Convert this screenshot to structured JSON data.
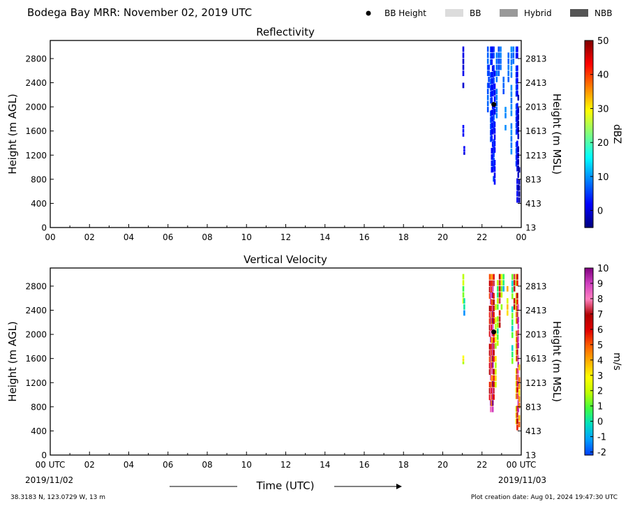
{
  "header": {
    "title": "Bodega Bay MRR:  November 02, 2019 UTC",
    "legend": [
      {
        "label": "BB Height",
        "kind": "dot",
        "color": "#000000"
      },
      {
        "label": "BB",
        "kind": "box",
        "color": "#dcdcdc"
      },
      {
        "label": "Hybrid",
        "kind": "box",
        "color": "#999999"
      },
      {
        "label": "NBB",
        "kind": "box",
        "color": "#555555"
      }
    ]
  },
  "footer": {
    "location": "38.3183 N, 123.0729 W, 13 m",
    "creation": "Plot creation date: Aug 01, 2024 19:47:30 UTC",
    "date_start": "2019/11/02",
    "date_end": "2019/11/03",
    "xlabel": "Time (UTC)"
  },
  "chart_data": [
    {
      "type": "heatmap",
      "title": "Reflectivity",
      "ylabel": "Height (m AGL)",
      "y2label": "Height (m MSL)",
      "xlim": [
        0,
        24
      ],
      "ylim": [
        0,
        3100
      ],
      "x_ticks": [
        "00",
        "02",
        "04",
        "06",
        "08",
        "10",
        "12",
        "14",
        "16",
        "18",
        "20",
        "22",
        "00"
      ],
      "y_ticks": [
        0,
        400,
        800,
        1200,
        1600,
        2000,
        2400,
        2800
      ],
      "y2_ticks": [
        "13",
        "413",
        "813",
        "1213",
        "1613",
        "2013",
        "2413",
        "2813"
      ],
      "colorbar": {
        "label": "dBZ",
        "min": -5,
        "max": 50,
        "ticks": [
          "0",
          "10",
          "20",
          "30",
          "40",
          "50"
        ],
        "tick_values": [
          0,
          10,
          20,
          30,
          40,
          50
        ],
        "stops": [
          "#00007f",
          "#0000ff",
          "#007fff",
          "#00ffff",
          "#7fff7f",
          "#ffff00",
          "#ff7f00",
          "#ff0000",
          "#7f0000"
        ]
      },
      "bb_height": {
        "x": 22.6,
        "y": 2040
      },
      "echo_columns": [
        {
          "x": 21.05,
          "y0": 2300,
          "y1": 3000,
          "v": 0
        },
        {
          "x": 21.05,
          "y0": 1500,
          "y1": 1700,
          "v": 2
        },
        {
          "x": 21.1,
          "y0": 1200,
          "y1": 1350,
          "v": 1
        },
        {
          "x": 22.3,
          "y0": 1800,
          "y1": 3000,
          "v": 7
        },
        {
          "x": 22.35,
          "y0": 2200,
          "y1": 2700,
          "v": 5
        },
        {
          "x": 22.45,
          "y0": 1300,
          "y1": 3000,
          "v": 6
        },
        {
          "x": 22.5,
          "y0": 900,
          "y1": 3000,
          "v": 3
        },
        {
          "x": 22.55,
          "y0": 800,
          "y1": 3000,
          "v": 2
        },
        {
          "x": 22.6,
          "y0": 750,
          "y1": 3000,
          "v": 5
        },
        {
          "x": 22.65,
          "y0": 700,
          "y1": 2600,
          "v": 2
        },
        {
          "x": 22.75,
          "y0": 1800,
          "y1": 3000,
          "v": 8
        },
        {
          "x": 22.85,
          "y0": 2400,
          "y1": 3000,
          "v": 6
        },
        {
          "x": 22.95,
          "y0": 2500,
          "y1": 3000,
          "v": 8
        },
        {
          "x": 23.1,
          "y0": 2200,
          "y1": 2500,
          "v": 7
        },
        {
          "x": 23.2,
          "y0": 1600,
          "y1": 2000,
          "v": 9
        },
        {
          "x": 23.35,
          "y0": 2400,
          "y1": 3000,
          "v": 8
        },
        {
          "x": 23.5,
          "y0": 1200,
          "y1": 3000,
          "v": 9
        },
        {
          "x": 23.6,
          "y0": 2700,
          "y1": 3000,
          "v": 8
        },
        {
          "x": 23.75,
          "y0": 1000,
          "y1": 3000,
          "v": 6
        },
        {
          "x": 23.8,
          "y0": 400,
          "y1": 3000,
          "v": 2
        },
        {
          "x": 23.85,
          "y0": 600,
          "y1": 2200,
          "v": -2
        },
        {
          "x": 23.9,
          "y0": 400,
          "y1": 1000,
          "v": -3
        }
      ]
    },
    {
      "type": "heatmap",
      "title": "Vertical Velocity",
      "ylabel": "Height (m AGL)",
      "y2label": "Height (m MSL)",
      "xlim": [
        0,
        24
      ],
      "ylim": [
        0,
        3100
      ],
      "x_ticks": [
        "00 UTC",
        "02",
        "04",
        "06",
        "08",
        "10",
        "12",
        "14",
        "16",
        "18",
        "20",
        "22",
        "00 UTC"
      ],
      "y_ticks": [
        0,
        400,
        800,
        1200,
        1600,
        2000,
        2400,
        2800
      ],
      "y2_ticks": [
        "13",
        "413",
        "813",
        "1213",
        "1613",
        "2013",
        "2413",
        "2813"
      ],
      "colorbar": {
        "label": "m/s",
        "min": -2.2,
        "max": 10,
        "ticks": [
          "-2",
          "-1",
          "0",
          "1",
          "2",
          "3",
          "4",
          "5",
          "6",
          "7",
          "8",
          "9",
          "10"
        ],
        "tick_values": [
          -2,
          -1,
          0,
          1,
          2,
          3,
          4,
          5,
          6,
          7,
          8,
          9,
          10
        ],
        "stops": [
          "#0040ff",
          "#00a0ff",
          "#00e0c0",
          "#40ff40",
          "#c0ff00",
          "#ffff00",
          "#ffb000",
          "#ff6000",
          "#e00000",
          "#b00000",
          "#ff80c0",
          "#d040c0",
          "#800080"
        ]
      },
      "bb_height": {
        "x": 22.6,
        "y": 2040
      },
      "echo_columns": [
        {
          "x": 21.05,
          "y0": 2500,
          "y1": 3000,
          "v": 1.5
        },
        {
          "x": 21.1,
          "y0": 2300,
          "y1": 2600,
          "v": -0.5
        },
        {
          "x": 21.05,
          "y0": 1500,
          "y1": 1650,
          "v": 2.5
        },
        {
          "x": 22.4,
          "y0": 900,
          "y1": 3000,
          "v": 6
        },
        {
          "x": 22.45,
          "y0": 700,
          "y1": 2800,
          "v": 8.5
        },
        {
          "x": 22.5,
          "y0": 800,
          "y1": 3000,
          "v": 5
        },
        {
          "x": 22.55,
          "y0": 700,
          "y1": 2800,
          "v": 9.5
        },
        {
          "x": 22.6,
          "y0": 800,
          "y1": 3000,
          "v": 6.5
        },
        {
          "x": 22.7,
          "y0": 1000,
          "y1": 2500,
          "v": 2.5
        },
        {
          "x": 22.8,
          "y0": 1800,
          "y1": 3000,
          "v": 1
        },
        {
          "x": 22.9,
          "y0": 2100,
          "y1": 3000,
          "v": 6.5
        },
        {
          "x": 23.0,
          "y0": 2400,
          "y1": 3000,
          "v": 2
        },
        {
          "x": 23.1,
          "y0": 2600,
          "y1": 3000,
          "v": 0
        },
        {
          "x": 23.3,
          "y0": 2300,
          "y1": 2800,
          "v": 3
        },
        {
          "x": 23.55,
          "y0": 1500,
          "y1": 3000,
          "v": 0.5
        },
        {
          "x": 23.65,
          "y0": 2400,
          "y1": 3000,
          "v": 7
        },
        {
          "x": 23.75,
          "y0": 500,
          "y1": 3000,
          "v": 3
        },
        {
          "x": 23.8,
          "y0": 400,
          "y1": 3000,
          "v": 6.5
        },
        {
          "x": 23.85,
          "y0": 700,
          "y1": 2500,
          "v": 8.5
        },
        {
          "x": 23.9,
          "y0": 450,
          "y1": 1500,
          "v": 4
        }
      ]
    }
  ]
}
